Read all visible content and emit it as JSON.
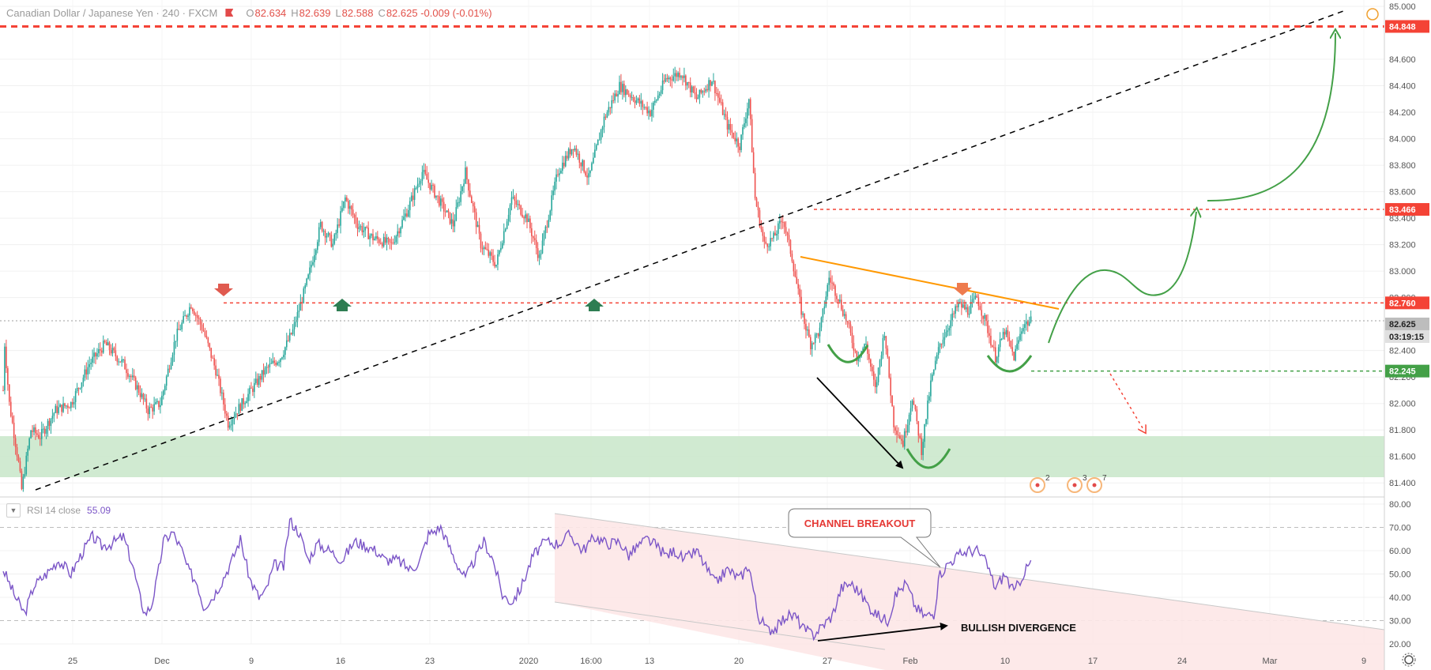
{
  "header": {
    "symbol": "Canadian Dollar / Japanese Yen · 240 · FXCM",
    "o_label": "O",
    "o_value": "82.634",
    "h_label": "H",
    "h_value": "82.639",
    "l_label": "L",
    "l_value": "82.588",
    "c_label": "C",
    "c_value": "82.625 -0.009 (-0.01%)"
  },
  "rsi_header": {
    "collapse_icon": "chevron-down-icon",
    "label": "RSI 14 close",
    "value": "55.09"
  },
  "colors": {
    "bull": "#26a69a",
    "bear": "#ef5350",
    "resistance": "#f44336",
    "support": "#43a047",
    "trendline": "#000000",
    "orange": "#ff9800",
    "rsi": "#7b55c7",
    "zone": "#c8e6c9",
    "channel": "#fde7e7"
  },
  "chart_data": [
    {
      "type": "candlestick",
      "title": "Canadian Dollar / Japanese Yen · 240 · FXCM",
      "ylim": [
        81.3,
        85.0
      ],
      "y_ticks": [
        "85.000",
        "84.600",
        "84.400",
        "84.200",
        "84.000",
        "83.800",
        "83.600",
        "83.400",
        "83.200",
        "83.000",
        "82.800",
        "82.400",
        "82.200",
        "82.000",
        "81.800",
        "81.600",
        "81.400"
      ],
      "x_ticks": [
        "25",
        "Dec",
        "9",
        "16",
        "23",
        "2020",
        "16:00",
        "13",
        "20",
        "27",
        "Feb",
        "10",
        "17",
        "24",
        "Mar",
        "9"
      ],
      "price_labels": [
        {
          "text": "84.848",
          "kind": "resistance"
        },
        {
          "text": "83.466",
          "kind": "resistance"
        },
        {
          "text": "82.760",
          "kind": "resistance"
        },
        {
          "text": "82.625",
          "kind": "last"
        },
        {
          "text": "03:19:15",
          "kind": "timer"
        },
        {
          "text": "82.245",
          "kind": "support"
        }
      ],
      "levels": [
        84.848,
        83.466,
        82.76,
        82.245
      ],
      "support_zone": [
        81.38,
        81.72
      ],
      "path_keypoints": [
        [
          0,
          82.1
        ],
        [
          1,
          82.45
        ],
        [
          4,
          82.0
        ],
        [
          10,
          81.55
        ],
        [
          12,
          81.35
        ],
        [
          18,
          81.8
        ],
        [
          24,
          81.75
        ],
        [
          34,
          81.95
        ],
        [
          44,
          82.0
        ],
        [
          56,
          82.3
        ],
        [
          66,
          82.45
        ],
        [
          78,
          82.3
        ],
        [
          88,
          82.1
        ],
        [
          94,
          81.95
        ],
        [
          102,
          82.0
        ],
        [
          112,
          82.5
        ],
        [
          122,
          82.75
        ],
        [
          130,
          82.55
        ],
        [
          138,
          82.25
        ],
        [
          146,
          81.85
        ],
        [
          158,
          82.05
        ],
        [
          170,
          82.25
        ],
        [
          180,
          82.35
        ],
        [
          188,
          82.55
        ],
        [
          198,
          82.95
        ],
        [
          206,
          83.35
        ],
        [
          214,
          83.2
        ],
        [
          222,
          83.55
        ],
        [
          230,
          83.35
        ],
        [
          240,
          83.25
        ],
        [
          252,
          83.2
        ],
        [
          262,
          83.45
        ],
        [
          272,
          83.75
        ],
        [
          282,
          83.55
        ],
        [
          292,
          83.35
        ],
        [
          300,
          83.75
        ],
        [
          310,
          83.2
        ],
        [
          320,
          83.05
        ],
        [
          330,
          83.55
        ],
        [
          340,
          83.4
        ],
        [
          348,
          83.1
        ],
        [
          360,
          83.75
        ],
        [
          370,
          83.95
        ],
        [
          380,
          83.7
        ],
        [
          390,
          84.15
        ],
        [
          400,
          84.4
        ],
        [
          410,
          84.3
        ],
        [
          420,
          84.2
        ],
        [
          430,
          84.45
        ],
        [
          440,
          84.5
        ],
        [
          450,
          84.3
        ],
        [
          460,
          84.45
        ],
        [
          470,
          84.1
        ],
        [
          478,
          83.95
        ],
        [
          484,
          84.3
        ],
        [
          488,
          83.55
        ],
        [
          494,
          83.2
        ],
        [
          500,
          83.25
        ],
        [
          506,
          83.4
        ],
        [
          512,
          83.1
        ],
        [
          518,
          82.7
        ],
        [
          524,
          82.45
        ],
        [
          530,
          82.55
        ],
        [
          536,
          82.95
        ],
        [
          542,
          82.8
        ],
        [
          548,
          82.6
        ],
        [
          554,
          82.35
        ],
        [
          560,
          82.45
        ],
        [
          566,
          82.1
        ],
        [
          572,
          82.55
        ],
        [
          578,
          81.85
        ],
        [
          584,
          81.7
        ],
        [
          590,
          82.05
        ],
        [
          596,
          81.65
        ],
        [
          602,
          82.15
        ],
        [
          608,
          82.45
        ],
        [
          614,
          82.6
        ],
        [
          620,
          82.75
        ],
        [
          626,
          82.7
        ],
        [
          632,
          82.8
        ],
        [
          638,
          82.6
        ],
        [
          644,
          82.35
        ],
        [
          650,
          82.55
        ],
        [
          656,
          82.35
        ],
        [
          662,
          82.6
        ],
        [
          667,
          82.62
        ]
      ],
      "annotations": [
        {
          "type": "dashed-trendline",
          "from": [
            12,
            81.35
          ],
          "to": [
            870,
            85.0
          ]
        },
        {
          "type": "descending-resistance",
          "from": [
            506,
            83.07
          ],
          "to": [
            670,
            82.73
          ]
        },
        {
          "type": "head-and-shoulders-curves",
          "count": 3
        },
        {
          "type": "projected-path",
          "target": 84.848
        },
        {
          "type": "bearish-alternative",
          "direction": "down"
        }
      ]
    },
    {
      "type": "line",
      "ylim": [
        20,
        80
      ],
      "y_ticks": [
        "80.00",
        "70.00",
        "60.00",
        "50.00",
        "40.00",
        "30.00",
        "20.00"
      ],
      "bands": [
        30,
        70
      ],
      "series": [
        {
          "name": "RSI 14 close",
          "last_value": 55.09
        }
      ],
      "rsi_keypoints": [
        [
          0,
          52
        ],
        [
          8,
          40
        ],
        [
          14,
          33
        ],
        [
          20,
          45
        ],
        [
          28,
          50
        ],
        [
          36,
          56
        ],
        [
          44,
          50
        ],
        [
          52,
          60
        ],
        [
          58,
          66
        ],
        [
          64,
          62
        ],
        [
          70,
          63
        ],
        [
          78,
          66
        ],
        [
          84,
          54
        ],
        [
          88,
          42
        ],
        [
          92,
          33
        ],
        [
          96,
          36
        ],
        [
          100,
          48
        ],
        [
          104,
          64
        ],
        [
          110,
          68
        ],
        [
          116,
          60
        ],
        [
          120,
          52
        ],
        [
          126,
          46
        ],
        [
          130,
          36
        ],
        [
          136,
          40
        ],
        [
          142,
          47
        ],
        [
          148,
          55
        ],
        [
          154,
          65
        ],
        [
          160,
          48
        ],
        [
          166,
          40
        ],
        [
          170,
          42
        ],
        [
          176,
          54
        ],
        [
          182,
          53
        ],
        [
          186,
          73
        ],
        [
          192,
          68
        ],
        [
          198,
          56
        ],
        [
          204,
          63
        ],
        [
          212,
          60
        ],
        [
          220,
          56
        ],
        [
          228,
          64
        ],
        [
          236,
          62
        ],
        [
          242,
          60
        ],
        [
          248,
          56
        ],
        [
          256,
          56
        ],
        [
          264,
          52
        ],
        [
          270,
          55
        ],
        [
          276,
          67
        ],
        [
          284,
          70
        ],
        [
          288,
          64
        ],
        [
          294,
          55
        ],
        [
          300,
          48
        ],
        [
          306,
          56
        ],
        [
          312,
          64
        ],
        [
          318,
          56
        ],
        [
          324,
          41
        ],
        [
          330,
          38
        ],
        [
          336,
          44
        ],
        [
          344,
          58
        ],
        [
          352,
          64
        ],
        [
          360,
          63
        ],
        [
          368,
          67
        ],
        [
          376,
          60
        ],
        [
          384,
          66
        ],
        [
          392,
          63
        ],
        [
          400,
          64
        ],
        [
          406,
          58
        ],
        [
          412,
          62
        ],
        [
          418,
          65
        ],
        [
          424,
          62
        ],
        [
          430,
          58
        ],
        [
          436,
          60
        ],
        [
          442,
          56
        ],
        [
          450,
          60
        ],
        [
          456,
          53
        ],
        [
          462,
          46
        ],
        [
          470,
          52
        ],
        [
          478,
          48
        ],
        [
          484,
          54
        ],
        [
          490,
          32
        ],
        [
          496,
          26
        ],
        [
          502,
          27
        ],
        [
          508,
          32
        ],
        [
          514,
          32
        ],
        [
          520,
          26
        ],
        [
          526,
          24
        ],
        [
          532,
          28
        ],
        [
          538,
          32
        ],
        [
          544,
          44
        ],
        [
          550,
          46
        ],
        [
          556,
          42
        ],
        [
          562,
          36
        ],
        [
          568,
          32
        ],
        [
          574,
          30
        ],
        [
          580,
          42
        ],
        [
          586,
          46
        ],
        [
          592,
          36
        ],
        [
          598,
          32
        ],
        [
          604,
          33
        ],
        [
          608,
          50
        ],
        [
          614,
          55
        ],
        [
          620,
          58
        ],
        [
          626,
          60
        ],
        [
          632,
          60
        ],
        [
          638,
          55
        ],
        [
          644,
          44
        ],
        [
          650,
          50
        ],
        [
          656,
          42
        ],
        [
          662,
          50
        ],
        [
          667,
          55
        ]
      ],
      "annotations": [
        {
          "type": "text-box",
          "text": "CHANNEL BREAKOUT"
        },
        {
          "type": "arrow-label",
          "text": "BULLISH DIVERGENCE"
        },
        {
          "type": "descending-channel"
        }
      ]
    }
  ],
  "event_markers": [
    "2",
    "3",
    "7"
  ]
}
